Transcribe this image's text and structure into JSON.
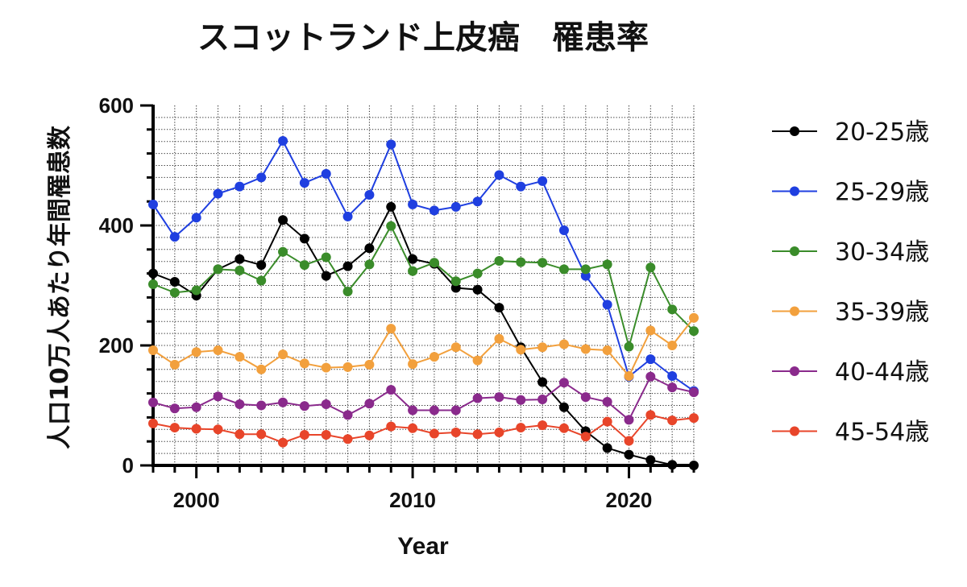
{
  "chart_data": {
    "type": "line",
    "title": "スコットランド上皮癌　罹患率",
    "xlabel": "Year",
    "ylabel": "人口10万人あたり年間罹患数",
    "xlim": [
      1998,
      2023
    ],
    "ylim": [
      0,
      600
    ],
    "x_ticks": [
      2000,
      2010,
      2020
    ],
    "y_ticks": [
      0,
      200,
      400,
      600
    ],
    "grid": "minor dotted",
    "legend_position": "right",
    "x": [
      1998,
      1999,
      2000,
      2001,
      2002,
      2003,
      2004,
      2005,
      2006,
      2007,
      2008,
      2009,
      2010,
      2011,
      2012,
      2013,
      2014,
      2015,
      2016,
      2017,
      2018,
      2019,
      2020,
      2021,
      2022,
      2023
    ],
    "series": [
      {
        "name": "20-25歳",
        "color": "#000000",
        "values": [
          320,
          306,
          283,
          327,
          344,
          334,
          409,
          378,
          316,
          332,
          362,
          431,
          344,
          336,
          296,
          293,
          263,
          197,
          139,
          97,
          57,
          29,
          18,
          9,
          1,
          0
        ]
      },
      {
        "name": "25-29歳",
        "color": "#1f3fe0",
        "values": [
          435,
          381,
          413,
          453,
          465,
          480,
          541,
          471,
          486,
          415,
          451,
          535,
          435,
          425,
          431,
          440,
          484,
          465,
          474,
          392,
          316,
          268,
          148,
          177,
          149,
          124
        ]
      },
      {
        "name": "30-34歳",
        "color": "#3a8c2a",
        "values": [
          302,
          288,
          292,
          327,
          325,
          308,
          356,
          334,
          347,
          290,
          335,
          399,
          324,
          338,
          307,
          320,
          341,
          339,
          338,
          327,
          327,
          335,
          198,
          330,
          260,
          224
        ]
      },
      {
        "name": "35-39歳",
        "color": "#f2a03d",
        "values": [
          192,
          168,
          189,
          192,
          181,
          160,
          185,
          170,
          163,
          164,
          168,
          228,
          169,
          181,
          197,
          175,
          211,
          193,
          197,
          202,
          194,
          192,
          149,
          225,
          200,
          246
        ]
      },
      {
        "name": "40-44歳",
        "color": "#8a2a8c",
        "values": [
          105,
          95,
          97,
          115,
          102,
          100,
          105,
          99,
          102,
          84,
          103,
          126,
          92,
          92,
          92,
          112,
          114,
          109,
          110,
          138,
          114,
          106,
          76,
          148,
          130,
          122
        ]
      },
      {
        "name": "45-54歳",
        "color": "#e8452a",
        "values": [
          70,
          63,
          61,
          60,
          52,
          52,
          38,
          51,
          51,
          44,
          50,
          65,
          62,
          53,
          55,
          52,
          55,
          63,
          67,
          62,
          48,
          73,
          41,
          84,
          75,
          79
        ]
      }
    ]
  }
}
